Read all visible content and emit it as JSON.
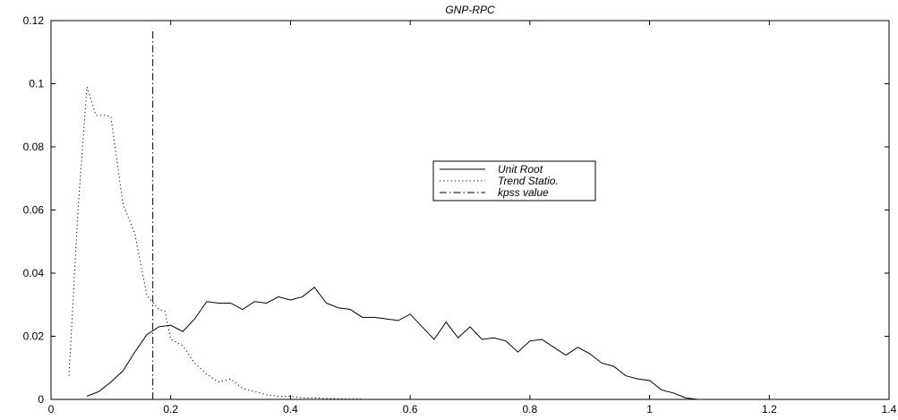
{
  "chart_data": {
    "type": "line",
    "title": "GNP-RPC",
    "xlabel": "",
    "ylabel": "",
    "xlim": [
      0,
      1.4
    ],
    "ylim": [
      0,
      0.12
    ],
    "x_ticks": [
      "0",
      "0.2",
      "0.4",
      "0.6",
      "0.8",
      "1",
      "1.2",
      "1.4"
    ],
    "y_ticks": [
      "0",
      "0.02",
      "0.04",
      "0.06",
      "0.08",
      "0.1",
      "0.12"
    ],
    "x_tick_values": [
      0,
      0.2,
      0.4,
      0.6,
      0.8,
      1.0,
      1.2,
      1.4
    ],
    "y_tick_values": [
      0,
      0.02,
      0.04,
      0.06,
      0.08,
      0.1,
      0.12
    ],
    "grid": false,
    "legend_position": "center",
    "series": [
      {
        "name": "Unit Root",
        "style": "solid",
        "color": "#000000",
        "points": [
          [
            0.06,
            0.001
          ],
          [
            0.08,
            0.0025
          ],
          [
            0.1,
            0.0055
          ],
          [
            0.12,
            0.009
          ],
          [
            0.14,
            0.015
          ],
          [
            0.16,
            0.0205
          ],
          [
            0.18,
            0.023
          ],
          [
            0.2,
            0.0235
          ],
          [
            0.22,
            0.0215
          ],
          [
            0.24,
            0.0255
          ],
          [
            0.26,
            0.031
          ],
          [
            0.28,
            0.0305
          ],
          [
            0.3,
            0.0305
          ],
          [
            0.32,
            0.0285
          ],
          [
            0.34,
            0.031
          ],
          [
            0.36,
            0.0305
          ],
          [
            0.38,
            0.0325
          ],
          [
            0.4,
            0.0315
          ],
          [
            0.42,
            0.0325
          ],
          [
            0.44,
            0.0355
          ],
          [
            0.46,
            0.0305
          ],
          [
            0.48,
            0.029
          ],
          [
            0.5,
            0.0285
          ],
          [
            0.52,
            0.026
          ],
          [
            0.54,
            0.026
          ],
          [
            0.56,
            0.0255
          ],
          [
            0.58,
            0.025
          ],
          [
            0.6,
            0.027
          ],
          [
            0.62,
            0.023
          ],
          [
            0.64,
            0.019
          ],
          [
            0.66,
            0.0245
          ],
          [
            0.68,
            0.0195
          ],
          [
            0.7,
            0.023
          ],
          [
            0.72,
            0.019
          ],
          [
            0.74,
            0.0195
          ],
          [
            0.76,
            0.0185
          ],
          [
            0.78,
            0.015
          ],
          [
            0.8,
            0.0185
          ],
          [
            0.82,
            0.019
          ],
          [
            0.84,
            0.0165
          ],
          [
            0.86,
            0.014
          ],
          [
            0.88,
            0.0165
          ],
          [
            0.9,
            0.0145
          ],
          [
            0.92,
            0.0115
          ],
          [
            0.94,
            0.0105
          ],
          [
            0.96,
            0.0075
          ],
          [
            0.98,
            0.0065
          ],
          [
            1.0,
            0.006
          ],
          [
            1.02,
            0.003
          ],
          [
            1.04,
            0.002
          ],
          [
            1.06,
            0.0005
          ],
          [
            1.08,
            0.0
          ]
        ]
      },
      {
        "name": "Trend Statio.",
        "style": "dotted",
        "color": "#000000",
        "points": [
          [
            0.03,
            0.0075
          ],
          [
            0.045,
            0.06
          ],
          [
            0.06,
            0.099
          ],
          [
            0.075,
            0.09
          ],
          [
            0.09,
            0.09
          ],
          [
            0.1,
            0.0895
          ],
          [
            0.12,
            0.062
          ],
          [
            0.14,
            0.0525
          ],
          [
            0.16,
            0.033
          ],
          [
            0.18,
            0.0285
          ],
          [
            0.19,
            0.028
          ],
          [
            0.2,
            0.019
          ],
          [
            0.22,
            0.017
          ],
          [
            0.24,
            0.0115
          ],
          [
            0.26,
            0.008
          ],
          [
            0.28,
            0.0055
          ],
          [
            0.3,
            0.0065
          ],
          [
            0.32,
            0.0035
          ],
          [
            0.34,
            0.0025
          ],
          [
            0.36,
            0.0015
          ],
          [
            0.38,
            0.001
          ],
          [
            0.4,
            0.001
          ],
          [
            0.42,
            0.0005
          ],
          [
            0.44,
            0.0005
          ],
          [
            0.46,
            0.0003
          ],
          [
            0.48,
            0.0002
          ],
          [
            0.5,
            0.0001
          ],
          [
            0.52,
            0.0001
          ]
        ]
      },
      {
        "name": "kpss value",
        "style": "dashdot",
        "color": "#000000",
        "points": [
          [
            0.17,
            0.0
          ],
          [
            0.17,
            0.1175
          ]
        ]
      }
    ]
  }
}
